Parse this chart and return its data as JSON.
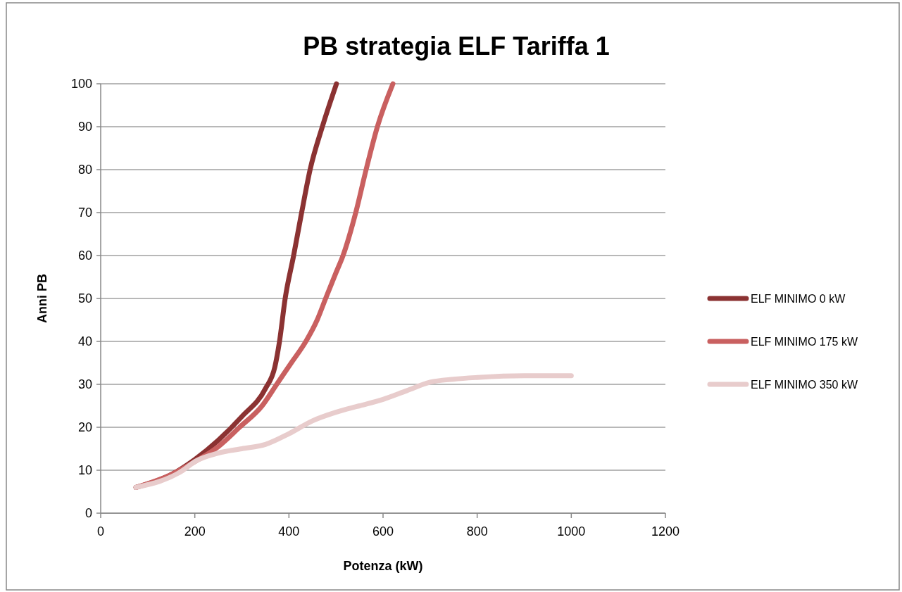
{
  "chart_data": {
    "type": "line",
    "title": "PB strategia ELF Tariffa 1",
    "xlabel": "Potenza (kW)",
    "ylabel": "Anni PB",
    "xlim": [
      0,
      1200
    ],
    "xticks": [
      0,
      200,
      400,
      600,
      800,
      1000,
      1200
    ],
    "ylim": [
      0,
      100
    ],
    "yticks": [
      0,
      10,
      20,
      30,
      40,
      50,
      60,
      70,
      80,
      90,
      100
    ],
    "grid": "y",
    "legend": "right",
    "line_style": "solid",
    "series": [
      {
        "name": "ELF MINIMO 0 kW",
        "color": "#8b3232",
        "x": [
          75,
          150,
          200,
          250,
          300,
          350,
          370,
          380,
          392,
          410,
          427,
          445,
          471,
          501
        ],
        "values": [
          6,
          9,
          12.5,
          17,
          22.5,
          29,
          34,
          40,
          50,
          60,
          70,
          80,
          90,
          100
        ]
      },
      {
        "name": "ELF MINIMO 175 kW",
        "color": "#c96060",
        "x": [
          75,
          150,
          200,
          250,
          295,
          343,
          374,
          405,
          436,
          460,
          478,
          500,
          515,
          542,
          564,
          588,
          621
        ],
        "values": [
          6,
          9,
          12,
          15.5,
          20,
          25,
          30,
          35,
          40,
          45,
          50,
          56,
          60,
          70,
          80,
          90,
          100
        ]
      },
      {
        "name": "ELF MINIMO 350 kW",
        "color": "#e8cccc",
        "x": [
          75,
          175,
          200,
          250,
          300,
          350,
          400,
          450,
          500,
          550,
          600,
          650,
          700,
          750,
          800,
          900,
          1000
        ],
        "values": [
          6,
          10,
          12,
          14,
          15,
          16,
          18.5,
          21.5,
          23.5,
          25,
          26.5,
          28.5,
          30.5,
          31.2,
          31.6,
          32,
          32
        ]
      }
    ]
  }
}
